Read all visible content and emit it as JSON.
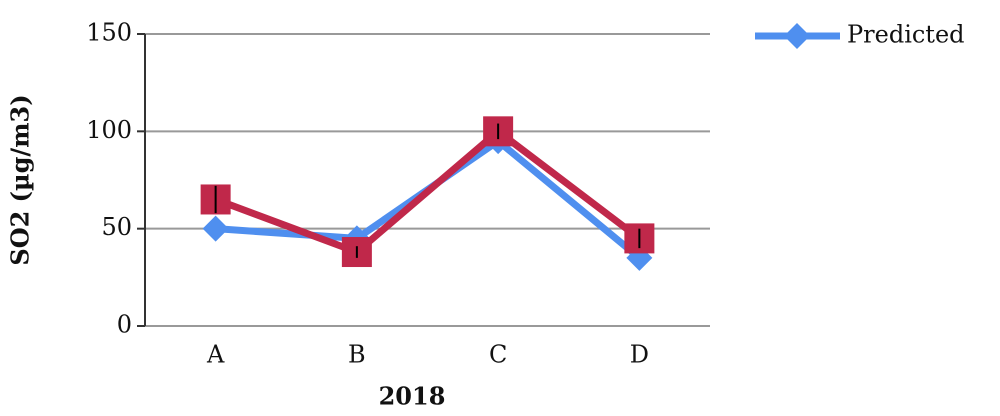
{
  "chart_data": {
    "type": "line",
    "x_label": "2018",
    "y_label": "SO2 (µg/m3)",
    "categories": [
      "A",
      "B",
      "C",
      "D"
    ],
    "series": [
      {
        "name": "Predicted",
        "color": "#4f8fef",
        "marker": "diamond",
        "values": [
          50,
          45,
          95,
          35
        ]
      },
      {
        "color": "#c0284a",
        "marker": "square",
        "values": [
          65,
          38,
          100,
          45
        ],
        "errors": [
          7,
          3,
          4,
          5
        ]
      }
    ],
    "ylim": [
      0,
      150
    ],
    "yticks": [
      0,
      50,
      100,
      150
    ],
    "grid": true,
    "legend": "top-right"
  }
}
